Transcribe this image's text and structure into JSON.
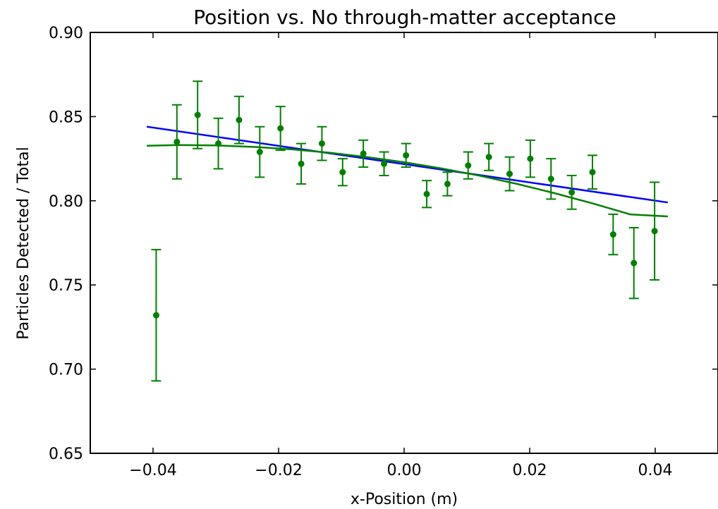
{
  "chart_data": {
    "type": "scatter",
    "title": "Position vs. No through-matter acceptance",
    "xlabel": "x-Position (m)",
    "ylabel": "Particles Detected / Total",
    "xlim": [
      -0.05,
      0.05
    ],
    "ylim": [
      0.65,
      0.9
    ],
    "xticks": [
      -0.04,
      -0.02,
      0.0,
      0.02,
      0.04
    ],
    "xtick_labels": [
      "−0.04",
      "−0.02",
      "0.00",
      "0.02",
      "0.04"
    ],
    "yticks": [
      0.65,
      0.7,
      0.75,
      0.8,
      0.85,
      0.9
    ],
    "ytick_labels": [
      "0.65",
      "0.70",
      "0.75",
      "0.80",
      "0.85",
      "0.90"
    ],
    "grid": false,
    "series": [
      {
        "kind": "errorbar",
        "color": "#008000",
        "x": [
          -0.0395,
          -0.0362,
          -0.0329,
          -0.0296,
          -0.0263,
          -0.023,
          -0.0197,
          -0.0164,
          -0.0131,
          -0.0098,
          -0.0065,
          -0.0032,
          0.0003,
          0.0036,
          0.0069,
          0.0102,
          0.0135,
          0.0168,
          0.0201,
          0.0234,
          0.0267,
          0.03,
          0.0333,
          0.0366,
          0.0399
        ],
        "y": [
          0.732,
          0.835,
          0.851,
          0.834,
          0.848,
          0.829,
          0.843,
          0.822,
          0.834,
          0.817,
          0.828,
          0.822,
          0.827,
          0.804,
          0.81,
          0.821,
          0.826,
          0.816,
          0.825,
          0.813,
          0.805,
          0.817,
          0.78,
          0.763,
          0.782
        ],
        "yerr": [
          0.039,
          0.022,
          0.02,
          0.015,
          0.014,
          0.015,
          0.013,
          0.012,
          0.01,
          0.008,
          0.008,
          0.007,
          0.007,
          0.008,
          0.007,
          0.008,
          0.008,
          0.01,
          0.011,
          0.012,
          0.01,
          0.01,
          0.012,
          0.021,
          0.029
        ]
      },
      {
        "kind": "line",
        "color": "#0000ff",
        "x": [
          -0.041,
          0.042
        ],
        "y": [
          0.844,
          0.799
        ]
      },
      {
        "kind": "line",
        "color": "#008000",
        "x": [
          -0.041,
          -0.036,
          -0.03,
          -0.024,
          -0.018,
          -0.012,
          -0.006,
          0.0,
          0.006,
          0.012,
          0.018,
          0.024,
          0.03,
          0.036,
          0.042
        ],
        "y": [
          0.8327,
          0.8331,
          0.8329,
          0.832,
          0.8306,
          0.8286,
          0.826,
          0.8229,
          0.8192,
          0.8149,
          0.81,
          0.8045,
          0.7985,
          0.7919,
          0.7907
        ]
      }
    ]
  }
}
